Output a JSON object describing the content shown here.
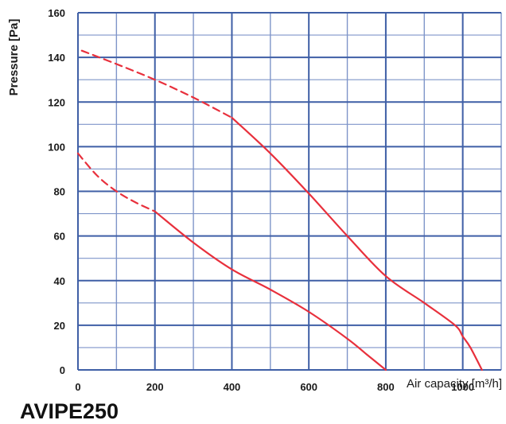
{
  "caption": "AVIPE250",
  "chart_data": {
    "type": "line",
    "xlabel": "Air capacity [m³/h]",
    "ylabel": "Pressure [Pa]",
    "xlim": [
      0,
      1100
    ],
    "ylim": [
      0,
      160
    ],
    "x_ticks": [
      0,
      200,
      400,
      600,
      800,
      1000
    ],
    "y_ticks": [
      0,
      20,
      40,
      60,
      80,
      100,
      120,
      140,
      160
    ],
    "grid": true,
    "colors": {
      "curve": "#e8303c",
      "grid": "#3f5fa6",
      "grid_minor": "#7f95c9"
    },
    "series": [
      {
        "dashed": {
          "x": [
            10,
            100,
            200,
            300,
            400
          ],
          "y": [
            143,
            137,
            130,
            122,
            113
          ]
        },
        "solid": {
          "x": [
            400,
            500,
            600,
            700,
            800,
            900,
            980,
            1000,
            1020,
            1050
          ],
          "y": [
            113,
            97,
            79,
            60,
            42,
            30,
            20,
            15,
            10,
            0
          ]
        }
      },
      {
        "dashed": {
          "x": [
            0,
            50,
            100,
            150,
            200
          ],
          "y": [
            97,
            87,
            80,
            75,
            71
          ]
        },
        "solid": {
          "x": [
            200,
            300,
            400,
            500,
            600,
            700,
            750,
            800
          ],
          "y": [
            71,
            57,
            45,
            36,
            26,
            14,
            7,
            0
          ]
        }
      }
    ]
  }
}
